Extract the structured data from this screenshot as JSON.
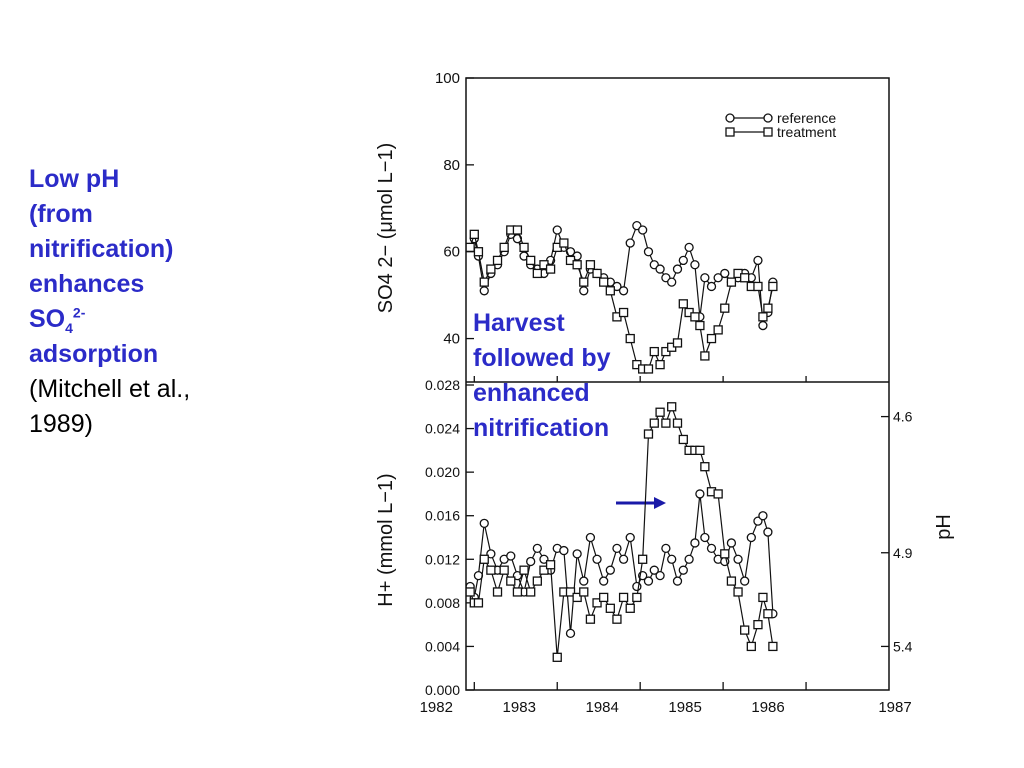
{
  "caption": {
    "line1": "Low pH",
    "line2": "(from",
    "line3": "nitrification)",
    "line4": "enhances",
    "so4_base": "SO",
    "so4_sub": "4",
    "so4_sup": "2-",
    "line6": "adsorption",
    "citation_line1": "(Mitchell et al.,",
    "citation_line2": "1989)"
  },
  "annotation": {
    "line1": "Harvest",
    "line2": "followed by",
    "line3": "enhanced",
    "line4": "nitrification"
  },
  "colors": {
    "highlight": "#2b2bc8",
    "ink": "#111111"
  },
  "chart_data": [
    {
      "type": "line",
      "panel": "top",
      "ylabel": "SO4 2− (μmol L−1)",
      "ylim": [
        30,
        100
      ],
      "yticks": [
        "100",
        "80",
        "60",
        "40"
      ],
      "legend": {
        "placement": "top-right",
        "entries": [
          "reference",
          "treatment"
        ]
      },
      "series": [
        {
          "name": "reference",
          "marker": "circle",
          "points": [
            [
              1981.95,
              61
            ],
            [
              1982.0,
              63
            ],
            [
              1982.05,
              59
            ],
            [
              1982.12,
              51
            ],
            [
              1982.2,
              55
            ],
            [
              1982.28,
              57
            ],
            [
              1982.36,
              60
            ],
            [
              1982.44,
              64
            ],
            [
              1982.52,
              63
            ],
            [
              1982.6,
              59
            ],
            [
              1982.68,
              57
            ],
            [
              1982.76,
              56
            ],
            [
              1982.84,
              55
            ],
            [
              1982.92,
              58
            ],
            [
              1983.0,
              65
            ],
            [
              1983.08,
              61
            ],
            [
              1983.16,
              60
            ],
            [
              1983.24,
              59
            ],
            [
              1983.32,
              51
            ],
            [
              1983.4,
              56
            ],
            [
              1983.48,
              55
            ],
            [
              1983.56,
              54
            ],
            [
              1983.64,
              53
            ],
            [
              1983.72,
              52
            ],
            [
              1983.8,
              51
            ],
            [
              1983.88,
              62
            ],
            [
              1983.96,
              66
            ],
            [
              1984.03,
              65
            ],
            [
              1984.1,
              60
            ],
            [
              1984.17,
              57
            ],
            [
              1984.24,
              56
            ],
            [
              1984.31,
              54
            ],
            [
              1984.38,
              53
            ],
            [
              1984.45,
              56
            ],
            [
              1984.52,
              58
            ],
            [
              1984.59,
              61
            ],
            [
              1984.66,
              57
            ],
            [
              1984.72,
              45
            ],
            [
              1984.78,
              54
            ],
            [
              1984.86,
              52
            ],
            [
              1984.94,
              54
            ],
            [
              1985.02,
              55
            ],
            [
              1985.1,
              53
            ],
            [
              1985.18,
              54
            ],
            [
              1985.26,
              55
            ],
            [
              1985.34,
              54
            ],
            [
              1985.42,
              58
            ],
            [
              1985.48,
              43
            ],
            [
              1985.54,
              46
            ],
            [
              1985.6,
              53
            ]
          ]
        },
        {
          "name": "treatment",
          "marker": "square",
          "points": [
            [
              1981.95,
              61
            ],
            [
              1982.0,
              64
            ],
            [
              1982.05,
              60
            ],
            [
              1982.12,
              53
            ],
            [
              1982.2,
              56
            ],
            [
              1982.28,
              58
            ],
            [
              1982.36,
              61
            ],
            [
              1982.44,
              65
            ],
            [
              1982.52,
              65
            ],
            [
              1982.6,
              61
            ],
            [
              1982.68,
              58
            ],
            [
              1982.76,
              55
            ],
            [
              1982.84,
              57
            ],
            [
              1982.92,
              56
            ],
            [
              1983.0,
              61
            ],
            [
              1983.08,
              62
            ],
            [
              1983.16,
              58
            ],
            [
              1983.24,
              57
            ],
            [
              1983.32,
              53
            ],
            [
              1983.4,
              57
            ],
            [
              1983.48,
              55
            ],
            [
              1983.56,
              53
            ],
            [
              1983.64,
              51
            ],
            [
              1983.72,
              45
            ],
            [
              1983.8,
              46
            ],
            [
              1983.88,
              40
            ],
            [
              1983.96,
              34
            ],
            [
              1984.03,
              33
            ],
            [
              1984.1,
              33
            ],
            [
              1984.17,
              37
            ],
            [
              1984.24,
              34
            ],
            [
              1984.31,
              37
            ],
            [
              1984.38,
              38
            ],
            [
              1984.45,
              39
            ],
            [
              1984.52,
              48
            ],
            [
              1984.59,
              46
            ],
            [
              1984.66,
              45
            ],
            [
              1984.72,
              43
            ],
            [
              1984.78,
              36
            ],
            [
              1984.86,
              40
            ],
            [
              1984.94,
              42
            ],
            [
              1985.02,
              47
            ],
            [
              1985.1,
              53
            ],
            [
              1985.18,
              55
            ],
            [
              1985.26,
              54
            ],
            [
              1985.34,
              52
            ],
            [
              1985.42,
              52
            ],
            [
              1985.48,
              45
            ],
            [
              1985.54,
              47
            ],
            [
              1985.6,
              52
            ]
          ]
        }
      ]
    },
    {
      "type": "line",
      "panel": "bottom",
      "ylabel": "H+ (mmol L−1)",
      "ylim": [
        0,
        0.028
      ],
      "yticks": [
        "0.028",
        "0.024",
        "0.020",
        "0.016",
        "0.012",
        "0.008",
        "0.004",
        "0.000"
      ],
      "y2label": "pH",
      "y2ticks": [
        {
          "label": "4.6",
          "h": 0.0251
        },
        {
          "label": "4.9",
          "h": 0.0126
        },
        {
          "label": "5.4",
          "h": 0.004
        }
      ],
      "xlabels": [
        "1982",
        "1983",
        "1984",
        "1985",
        "1986",
        "1987"
      ],
      "xlim": [
        1981.9,
        1987.0
      ],
      "series": [
        {
          "name": "reference",
          "marker": "circle",
          "points": [
            [
              1981.95,
              0.0095
            ],
            [
              1982.0,
              0.0085
            ],
            [
              1982.05,
              0.0105
            ],
            [
              1982.12,
              0.0153
            ],
            [
              1982.2,
              0.0125
            ],
            [
              1982.28,
              0.011
            ],
            [
              1982.36,
              0.012
            ],
            [
              1982.44,
              0.0123
            ],
            [
              1982.52,
              0.0105
            ],
            [
              1982.6,
              0.009
            ],
            [
              1982.68,
              0.0118
            ],
            [
              1982.76,
              0.013
            ],
            [
              1982.84,
              0.012
            ],
            [
              1982.92,
              0.011
            ],
            [
              1983.0,
              0.013
            ],
            [
              1983.08,
              0.0128
            ],
            [
              1983.16,
              0.0052
            ],
            [
              1983.24,
              0.0125
            ],
            [
              1983.32,
              0.01
            ],
            [
              1983.4,
              0.014
            ],
            [
              1983.48,
              0.012
            ],
            [
              1983.56,
              0.01
            ],
            [
              1983.64,
              0.011
            ],
            [
              1983.72,
              0.013
            ],
            [
              1983.8,
              0.012
            ],
            [
              1983.88,
              0.014
            ],
            [
              1983.96,
              0.0095
            ],
            [
              1984.03,
              0.0105
            ],
            [
              1984.1,
              0.01
            ],
            [
              1984.17,
              0.011
            ],
            [
              1984.24,
              0.0105
            ],
            [
              1984.31,
              0.013
            ],
            [
              1984.38,
              0.012
            ],
            [
              1984.45,
              0.01
            ],
            [
              1984.52,
              0.011
            ],
            [
              1984.59,
              0.012
            ],
            [
              1984.66,
              0.0135
            ],
            [
              1984.72,
              0.018
            ],
            [
              1984.78,
              0.014
            ],
            [
              1984.86,
              0.013
            ],
            [
              1984.94,
              0.012
            ],
            [
              1985.02,
              0.0118
            ],
            [
              1985.1,
              0.0135
            ],
            [
              1985.18,
              0.012
            ],
            [
              1985.26,
              0.01
            ],
            [
              1985.34,
              0.014
            ],
            [
              1985.42,
              0.0155
            ],
            [
              1985.48,
              0.016
            ],
            [
              1985.54,
              0.0145
            ],
            [
              1985.6,
              0.007
            ]
          ]
        },
        {
          "name": "treatment",
          "marker": "square",
          "points": [
            [
              1981.95,
              0.009
            ],
            [
              1982.0,
              0.008
            ],
            [
              1982.05,
              0.008
            ],
            [
              1982.12,
              0.012
            ],
            [
              1982.2,
              0.011
            ],
            [
              1982.28,
              0.009
            ],
            [
              1982.36,
              0.011
            ],
            [
              1982.44,
              0.01
            ],
            [
              1982.52,
              0.009
            ],
            [
              1982.6,
              0.011
            ],
            [
              1982.68,
              0.009
            ],
            [
              1982.76,
              0.01
            ],
            [
              1982.84,
              0.011
            ],
            [
              1982.92,
              0.0115
            ],
            [
              1983.0,
              0.003
            ],
            [
              1983.08,
              0.009
            ],
            [
              1983.16,
              0.009
            ],
            [
              1983.24,
              0.0085
            ],
            [
              1983.32,
              0.009
            ],
            [
              1983.4,
              0.0065
            ],
            [
              1983.48,
              0.008
            ],
            [
              1983.56,
              0.0085
            ],
            [
              1983.64,
              0.0075
            ],
            [
              1983.72,
              0.0065
            ],
            [
              1983.8,
              0.0085
            ],
            [
              1983.88,
              0.0075
            ],
            [
              1983.96,
              0.0085
            ],
            [
              1984.03,
              0.012
            ],
            [
              1984.1,
              0.0235
            ],
            [
              1984.17,
              0.0245
            ],
            [
              1984.24,
              0.0255
            ],
            [
              1984.31,
              0.0245
            ],
            [
              1984.38,
              0.026
            ],
            [
              1984.45,
              0.0245
            ],
            [
              1984.52,
              0.023
            ],
            [
              1984.59,
              0.022
            ],
            [
              1984.66,
              0.022
            ],
            [
              1984.72,
              0.022
            ],
            [
              1984.78,
              0.0205
            ],
            [
              1984.86,
              0.0182
            ],
            [
              1984.94,
              0.018
            ],
            [
              1985.02,
              0.0125
            ],
            [
              1985.1,
              0.01
            ],
            [
              1985.18,
              0.009
            ],
            [
              1985.26,
              0.0055
            ],
            [
              1985.34,
              0.004
            ],
            [
              1985.42,
              0.006
            ],
            [
              1985.48,
              0.0085
            ],
            [
              1985.54,
              0.007
            ],
            [
              1985.6,
              0.004
            ]
          ]
        }
      ]
    }
  ]
}
